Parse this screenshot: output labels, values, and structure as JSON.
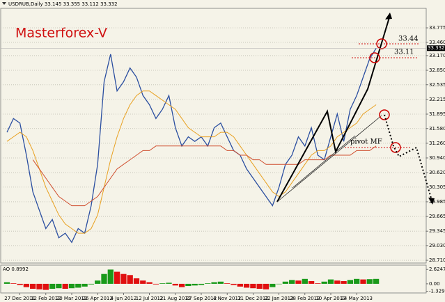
{
  "chart_data": [
    {
      "type": "line",
      "title": "USDRUB,Daily  33.145 33.355 33.112 33.332",
      "annotations": {
        "brand": "Masterforex-V",
        "level_high": "33.44",
        "level_low": "33.11",
        "pivot": "pivot MF"
      },
      "categories": [
        null,
        null,
        "27 Dec 2011",
        null,
        null,
        null,
        "12 Feb 2012",
        null,
        null,
        null,
        "20 Mar 2012",
        null,
        null,
        null,
        "26 Apr 2012",
        null,
        null,
        null,
        "4 Jun 2012",
        null,
        null,
        null,
        "12 Jul 2012",
        null,
        null,
        null,
        "21 Aug 2012",
        null,
        null,
        null,
        "27 Sep 2012",
        null,
        null,
        null,
        "4 Nov 2012",
        null,
        null,
        null,
        "11 Dec 2012",
        null,
        null,
        null,
        "22 Jan 2013",
        null,
        null,
        null,
        "28 Feb 2013",
        null,
        null,
        null,
        "10 Apr 2013",
        null,
        null,
        null,
        "24 May 2013",
        null,
        null,
        null,
        null,
        null,
        null,
        null
      ],
      "series": [
        {
          "color": "#2a4ea0",
          "width": 1.3,
          "values": [
            31.5,
            31.8,
            31.7,
            31.0,
            30.2,
            29.8,
            29.4,
            29.6,
            29.2,
            29.3,
            29.1,
            29.4,
            29.3,
            29.9,
            30.8,
            32.6,
            33.2,
            32.4,
            32.6,
            32.9,
            32.7,
            32.3,
            32.1,
            31.8,
            32.0,
            32.3,
            31.6,
            31.2,
            31.4,
            31.3,
            31.4,
            31.2,
            31.6,
            31.7,
            31.4,
            31.1,
            31.0,
            30.7,
            30.5,
            30.3,
            30.1,
            29.9,
            30.3,
            30.8,
            31.0,
            31.4,
            31.2,
            31.6,
            31.0,
            30.9,
            31.4,
            31.9,
            31.3,
            32.0,
            32.3,
            32.7,
            33.1,
            33.33,
            null,
            null,
            null,
            null
          ]
        },
        {
          "color": "#e8a020",
          "width": 1,
          "values": [
            31.3,
            31.4,
            31.5,
            31.4,
            31.1,
            30.7,
            30.3,
            30.0,
            29.7,
            29.5,
            29.4,
            29.3,
            29.3,
            29.4,
            29.7,
            30.3,
            30.9,
            31.4,
            31.8,
            32.1,
            32.3,
            32.4,
            32.4,
            32.3,
            32.2,
            32.1,
            32.0,
            31.8,
            31.6,
            31.5,
            31.4,
            31.4,
            31.4,
            31.5,
            31.5,
            31.4,
            31.2,
            31.0,
            30.8,
            30.6,
            30.4,
            30.2,
            30.1,
            30.2,
            30.4,
            30.6,
            30.8,
            31.0,
            31.1,
            31.1,
            31.2,
            31.4,
            31.5,
            31.6,
            31.7,
            31.9,
            32.0,
            32.1,
            null,
            null,
            null,
            null
          ]
        },
        {
          "color": "#d05030",
          "width": 1,
          "values": [
            null,
            null,
            null,
            null,
            30.9,
            30.7,
            30.5,
            30.3,
            30.1,
            30.0,
            29.9,
            29.9,
            29.9,
            30.0,
            30.1,
            30.3,
            30.5,
            30.7,
            30.8,
            30.9,
            31.0,
            31.1,
            31.1,
            31.2,
            31.2,
            31.2,
            31.2,
            31.2,
            31.2,
            31.2,
            31.2,
            31.2,
            31.2,
            31.2,
            31.1,
            31.1,
            31.0,
            31.0,
            30.9,
            30.9,
            30.8,
            30.8,
            30.8,
            30.8,
            30.8,
            30.8,
            30.9,
            30.9,
            30.9,
            30.9,
            31.0,
            31.0,
            31.0,
            31.0,
            31.1,
            31.1,
            31.1,
            31.2,
            null,
            null,
            null,
            null
          ]
        }
      ],
      "current_price": 33.332,
      "ylim": [
        28.65,
        34.2
      ],
      "yticks": [
        33.775,
        {
          "value": 33.46,
          "label": "33.460"
        },
        {
          "value": 33.17,
          "label": "33.170"
        },
        {
          "value": 32.85,
          "label": "32.850"
        },
        32.535,
        32.215,
        31.895,
        {
          "value": 31.58,
          "label": "31.580"
        },
        {
          "value": 31.26,
          "label": "31.260"
        },
        {
          "value": 30.94,
          "label": "30.940"
        },
        {
          "value": 30.62,
          "label": "30.620"
        },
        30.305,
        29.985,
        29.665,
        29.345,
        {
          "value": 29.03,
          "label": "29.030"
        },
        {
          "value": 28.71,
          "label": "28.710"
        }
      ],
      "grid": true
    },
    {
      "type": "bar",
      "title": "AO 0.8992",
      "values": [
        0.3,
        0.1,
        -0.2,
        -0.6,
        -0.9,
        -1.0,
        -1.1,
        -0.9,
        -0.8,
        -0.9,
        -0.8,
        -0.7,
        -0.5,
        -0.1,
        0.6,
        1.8,
        2.6,
        2.2,
        1.8,
        1.6,
        1.0,
        0.6,
        0.3,
        -0.1,
        0.1,
        0.2,
        -0.3,
        -0.6,
        -0.4,
        -0.3,
        -0.2,
        0.1,
        0.3,
        0.4,
        0.1,
        -0.2,
        -0.5,
        -0.7,
        -0.8,
        -0.9,
        -1.0,
        -0.6,
        0.0,
        0.4,
        0.7,
        0.6,
        0.9,
        0.5,
        0.1,
        0.4,
        0.8,
        0.6,
        0.5,
        0.7,
        0.9,
        0.8,
        0.85,
        0.9,
        null,
        null,
        null,
        null
      ],
      "up_color": "#1a9a1a",
      "down_color": "#e01010",
      "ylim": [
        -1.66,
        3.41
      ],
      "yticks": [
        2.6247,
        {
          "value": 0,
          "label": "0.00"
        },
        -1.3295
      ]
    }
  ]
}
